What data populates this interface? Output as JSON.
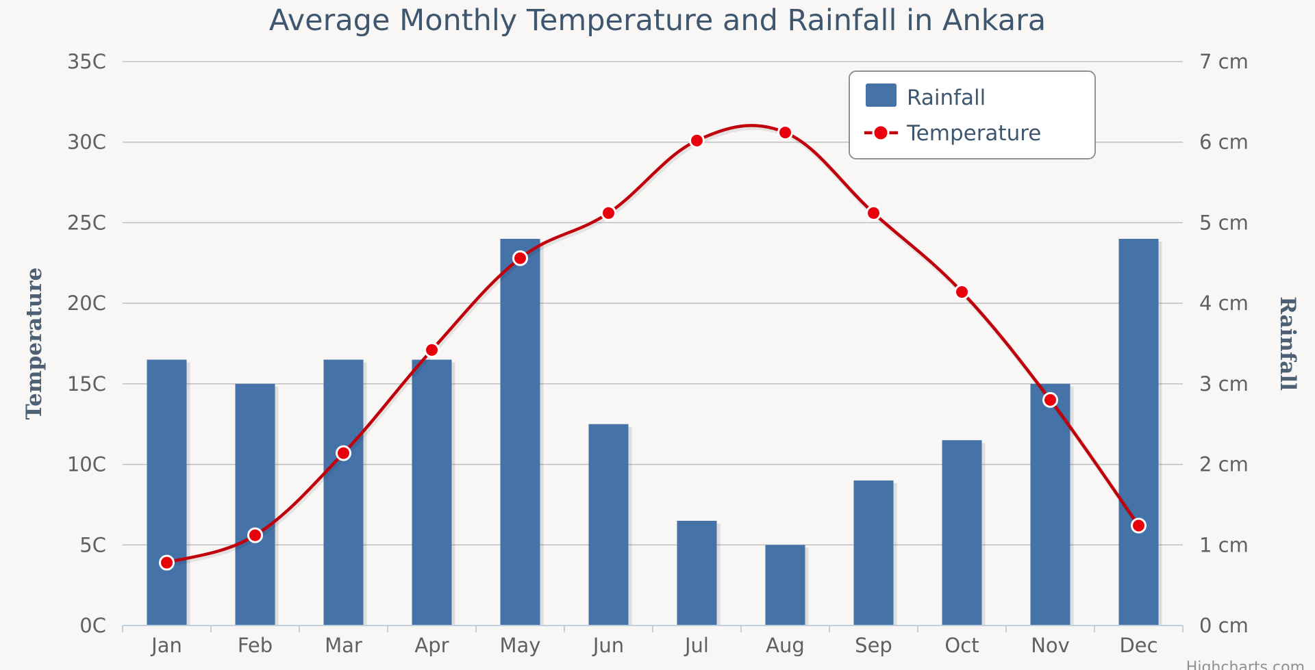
{
  "chart_data": {
    "type": "bar+line",
    "title": "Average Monthly Temperature and Rainfall in Ankara",
    "categories": [
      "Jan",
      "Feb",
      "Mar",
      "Apr",
      "May",
      "Jun",
      "Jul",
      "Aug",
      "Sep",
      "Oct",
      "Nov",
      "Dec"
    ],
    "series": [
      {
        "name": "Rainfall",
        "type": "column",
        "axis": "right",
        "color": "#4572a7",
        "values": [
          3.3,
          3.0,
          3.3,
          3.3,
          4.8,
          2.5,
          1.3,
          1.0,
          1.8,
          2.3,
          3.0,
          4.8
        ]
      },
      {
        "name": "Temperature",
        "type": "spline",
        "axis": "left",
        "color": "#c0000b",
        "values": [
          3.9,
          5.6,
          10.7,
          17.1,
          22.8,
          25.6,
          30.1,
          30.6,
          25.6,
          20.7,
          14.0,
          6.2
        ]
      }
    ],
    "yAxisLeft": {
      "label": "Temperature",
      "range": [
        0,
        35
      ],
      "ticks": [
        "0C",
        "5C",
        "10C",
        "15C",
        "20C",
        "25C",
        "30C",
        "35C"
      ]
    },
    "yAxisRight": {
      "label": "Rainfall",
      "range": [
        0,
        7
      ],
      "ticks": [
        "0 cm",
        "1 cm",
        "2 cm",
        "3 cm",
        "4 cm",
        "5 cm",
        "6 cm",
        "7 cm"
      ]
    },
    "legend": {
      "position": "top-right",
      "items": [
        "Rainfall",
        "Temperature"
      ]
    },
    "grid": true,
    "credits": "Highcharts.com"
  }
}
